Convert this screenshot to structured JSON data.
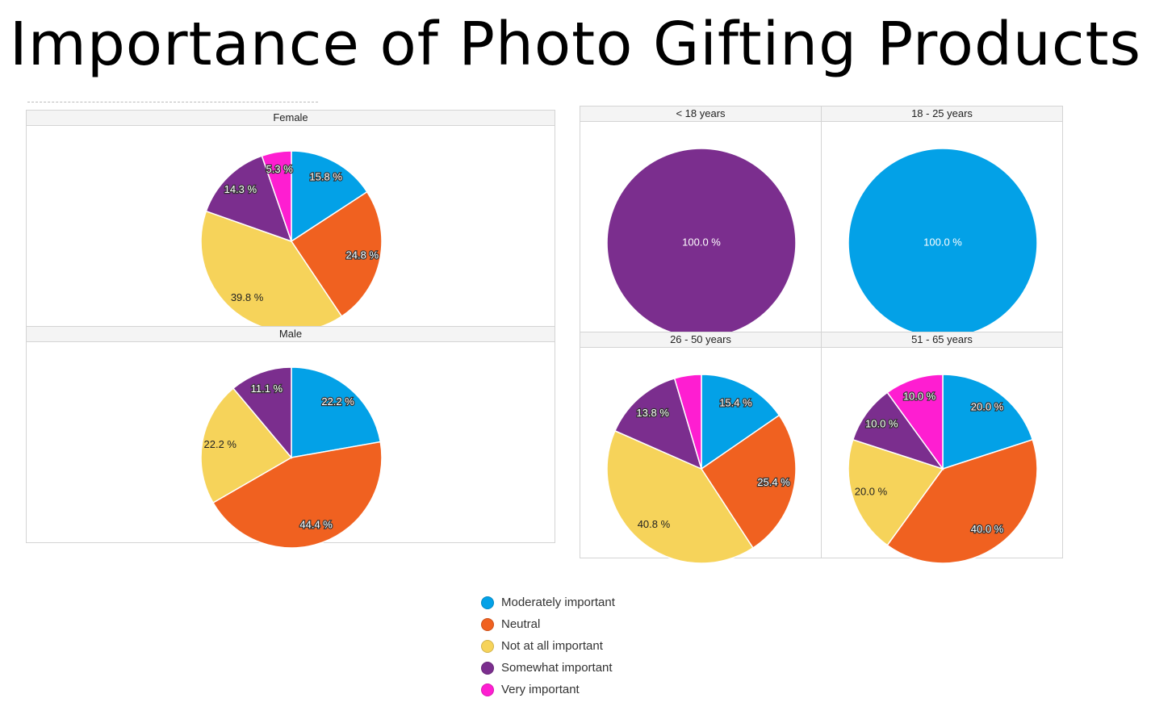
{
  "title": "Importance of Photo Gifting Products",
  "colors": {
    "Moderately important": "#03a1e7",
    "Neutral": "#f06120",
    "Not at all important": "#f6d35a",
    "Somewhat important": "#7b2e8e",
    "Very important": "#fe1ed1"
  },
  "legend": [
    "Moderately important",
    "Neutral",
    "Not at all important",
    "Somewhat important",
    "Very important"
  ],
  "chart_data": [
    {
      "type": "pie",
      "title": "Female",
      "slices": [
        {
          "category": "Moderately important",
          "value": 15.8,
          "label": "15.8 %"
        },
        {
          "category": "Neutral",
          "value": 24.8,
          "label": "24.8 %"
        },
        {
          "category": "Not at all important",
          "value": 39.8,
          "label": "39.8 %"
        },
        {
          "category": "Somewhat important",
          "value": 14.3,
          "label": "14.3 %"
        },
        {
          "category": "Very important",
          "value": 5.3,
          "label": "5.3 %"
        }
      ]
    },
    {
      "type": "pie",
      "title": "Male",
      "slices": [
        {
          "category": "Moderately important",
          "value": 22.2,
          "label": "22.2 %"
        },
        {
          "category": "Neutral",
          "value": 44.4,
          "label": "44.4 %"
        },
        {
          "category": "Not at all important",
          "value": 22.2,
          "label": "22.2 %"
        },
        {
          "category": "Somewhat important",
          "value": 11.1,
          "label": "11.1 %"
        }
      ]
    },
    {
      "type": "pie",
      "title": "< 18 years",
      "slices": [
        {
          "category": "Somewhat important",
          "value": 100.0,
          "label": "100.0 %"
        }
      ]
    },
    {
      "type": "pie",
      "title": "18 - 25 years",
      "slices": [
        {
          "category": "Moderately important",
          "value": 100.0,
          "label": "100.0 %"
        }
      ]
    },
    {
      "type": "pie",
      "title": "26 - 50 years",
      "slices": [
        {
          "category": "Moderately important",
          "value": 15.4,
          "label": "15.4 %"
        },
        {
          "category": "Neutral",
          "value": 25.4,
          "label": "25.4 %"
        },
        {
          "category": "Not at all important",
          "value": 40.8,
          "label": "40.8 %"
        },
        {
          "category": "Somewhat important",
          "value": 13.8,
          "label": "13.8 %"
        },
        {
          "category": "Very important",
          "value": 4.6
        }
      ]
    },
    {
      "type": "pie",
      "title": "51 - 65 years",
      "slices": [
        {
          "category": "Moderately important",
          "value": 20.0,
          "label": "20.0 %"
        },
        {
          "category": "Neutral",
          "value": 40.0,
          "label": "40.0 %"
        },
        {
          "category": "Not at all important",
          "value": 20.0,
          "label": "20.0 %"
        },
        {
          "category": "Somewhat important",
          "value": 10.0,
          "label": "10.0 %"
        },
        {
          "category": "Very important",
          "value": 10.0,
          "label": "10.0 %"
        }
      ]
    }
  ]
}
